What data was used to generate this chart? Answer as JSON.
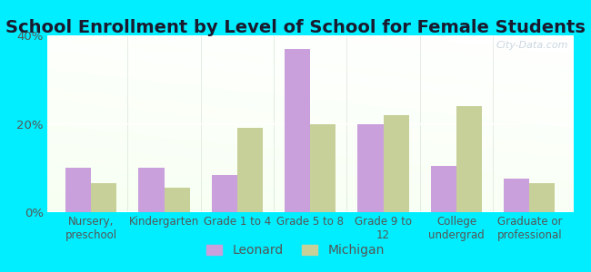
{
  "title": "School Enrollment by Level of School for Female Students",
  "categories": [
    "Nursery,\npreschool",
    "Kindergarten",
    "Grade 1 to 4",
    "Grade 5 to 8",
    "Grade 9 to\n12",
    "College\nundergrad",
    "Graduate or\nprofessional"
  ],
  "leonard_values": [
    10,
    10,
    8.5,
    37,
    20,
    10.5,
    7.5
  ],
  "michigan_values": [
    6.5,
    5.5,
    19,
    20,
    22,
    24,
    6.5
  ],
  "leonard_color": "#c9a0dc",
  "michigan_color": "#c8d09a",
  "background_color": "#00eeff",
  "ylim": [
    0,
    40
  ],
  "yticks": [
    0,
    20,
    40
  ],
  "ytick_labels": [
    "0%",
    "20%",
    "40%"
  ],
  "bar_width": 0.35,
  "title_fontsize": 14,
  "tick_fontsize": 8.5,
  "legend_fontsize": 10,
  "watermark": "City-Data.com"
}
